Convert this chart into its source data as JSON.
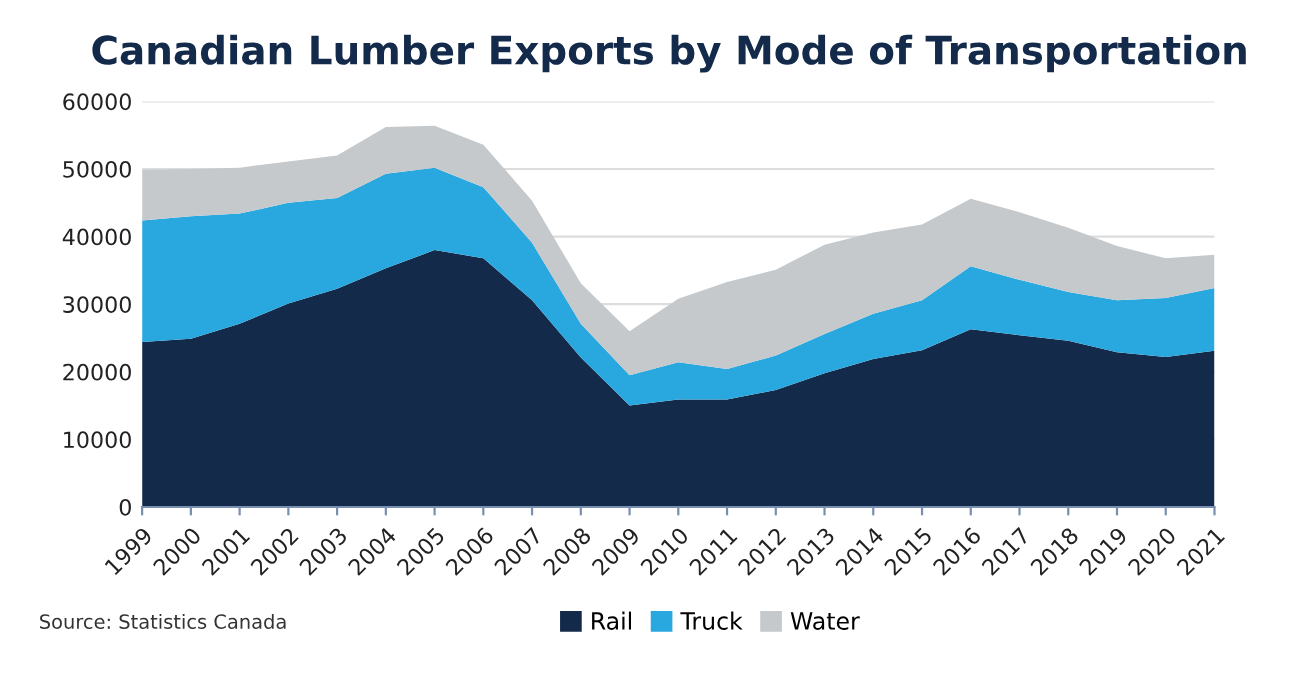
{
  "chart_data": {
    "type": "area",
    "stacked": true,
    "title": "Canadian Lumber Exports by Mode of Transportation",
    "categories": [
      "1999",
      "2000",
      "2001",
      "2002",
      "2003",
      "2004",
      "2005",
      "2006",
      "2007",
      "2008",
      "2009",
      "2010",
      "2011",
      "2012",
      "2013",
      "2014",
      "2015",
      "2016",
      "2017",
      "2018",
      "2019",
      "2020",
      "2021"
    ],
    "series": [
      {
        "name": "Rail",
        "color": "#142a4a",
        "values": [
          24400,
          24900,
          27100,
          30100,
          32300,
          35300,
          38000,
          36800,
          30600,
          22100,
          15000,
          15900,
          15900,
          17300,
          19800,
          21900,
          23200,
          26300,
          25400,
          24600,
          22900,
          22200,
          23100
        ]
      },
      {
        "name": "Truck",
        "color": "#29a8e0",
        "values": [
          18000,
          18100,
          16300,
          14900,
          13400,
          14000,
          12200,
          10500,
          8500,
          5000,
          4500,
          5500,
          4500,
          5100,
          5800,
          6700,
          7400,
          9300,
          8200,
          7200,
          7700,
          8700,
          9300
        ]
      },
      {
        "name": "Water",
        "color": "#c5c9cc",
        "values": [
          7500,
          7000,
          6800,
          6100,
          6300,
          6900,
          6200,
          6300,
          6200,
          6000,
          6500,
          9400,
          12900,
          12700,
          13200,
          12000,
          11200,
          10000,
          10000,
          9500,
          8000,
          5900,
          4900
        ]
      }
    ],
    "ylim": [
      0,
      60000
    ],
    "yticks": [
      0,
      10000,
      20000,
      30000,
      40000,
      50000,
      60000
    ],
    "grid": "y",
    "legend": "bottom",
    "annotations": [
      "Source: Statistics Canada"
    ]
  }
}
